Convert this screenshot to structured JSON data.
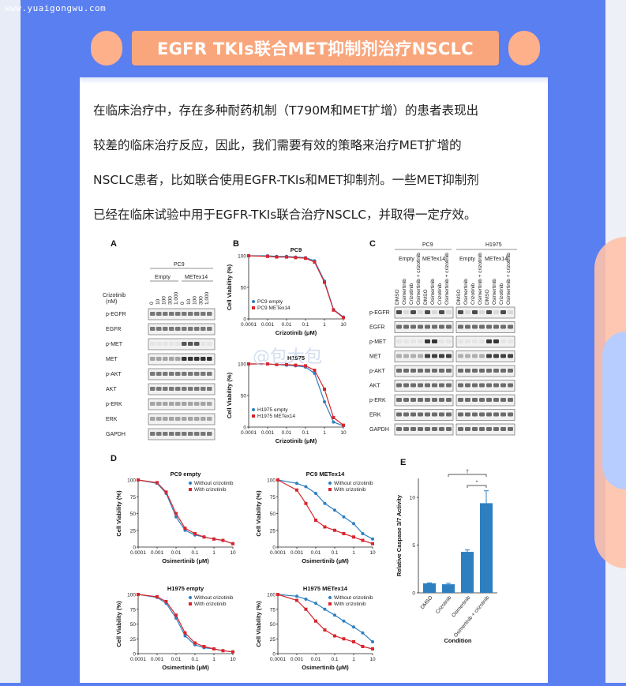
{
  "watermark_site": "www.yuaigongwu.com",
  "banner_title": "EGFR TKIs联合MET抑制剂治疗NSCLC",
  "paragraph_lines": [
    "在临床治疗中，存在多种耐药机制（T790M和MET扩增）的患者表现出",
    "较差的临床治疗反应，因此，我们需要有效的策略来治疗MET扩增的",
    "NSCLC患者，比如联合使用EGFR-TKIs和MET抑制剂。一些MET抑制剂",
    "已经在临床试验中用于EGFR-TKIs联合治疗NSCLC，并取得一定疗效。"
  ],
  "figure_watermark": "@包大包",
  "panel_A": {
    "letter": "A",
    "cell_line": "PC9",
    "groups": [
      "Empty",
      "METex14"
    ],
    "dose_label": "Crizotinib (nM)",
    "doses": [
      "0",
      "10",
      "100",
      "300",
      "1,000"
    ],
    "blots": [
      "p-EGFR",
      "EGFR",
      "p-MET",
      "MET",
      "p-AKT",
      "AKT",
      "p-ERK",
      "ERK",
      "GAPDH"
    ]
  },
  "panel_C": {
    "letter": "C",
    "cell_lines": [
      "PC9",
      "H1975"
    ],
    "groups": [
      "Empty",
      "METex14",
      "Empty",
      "METex14"
    ],
    "treatments": [
      "DMSO",
      "Osimertinib",
      "Crizotinib",
      "Osimertinib + crizotinib"
    ],
    "blots": [
      "p-EGFR",
      "EGFR",
      "p-MET",
      "MET",
      "p-AKT",
      "AKT",
      "p-ERK",
      "ERK",
      "GAPDH"
    ]
  },
  "chart_data": [
    {
      "panel": "B",
      "type": "line",
      "title": "PC9",
      "xlabel": "Crizotinib (μM)",
      "ylabel": "Cell Viability (%)",
      "xscale": "log",
      "ylim": [
        0,
        100
      ],
      "xticks": [
        "0.0001",
        "0.001",
        "0.01",
        "0.1",
        "1",
        "10"
      ],
      "yticks": [
        "0",
        "50",
        "100"
      ],
      "legend_position": "bottom-left",
      "series": [
        {
          "name": "PC9 empty",
          "color": "#2e7fc0",
          "x": [
            0.0001,
            0.001,
            0.003,
            0.01,
            0.03,
            0.1,
            0.3,
            1,
            3,
            10
          ],
          "y": [
            100,
            100,
            99,
            99,
            98,
            97,
            92,
            60,
            15,
            3
          ]
        },
        {
          "name": "PC9 METex14",
          "color": "#d8262e",
          "x": [
            0.0001,
            0.001,
            0.003,
            0.01,
            0.03,
            0.1,
            0.3,
            1,
            3,
            10
          ],
          "y": [
            100,
            99,
            98,
            98,
            97,
            96,
            90,
            58,
            14,
            2
          ]
        }
      ]
    },
    {
      "panel": "B2",
      "type": "line",
      "title": "H1975",
      "xlabel": "Crizotinib (μM)",
      "ylabel": "Cell Viability (%)",
      "xscale": "log",
      "ylim": [
        0,
        100
      ],
      "xticks": [
        "0.0001",
        "0.001",
        "0.01",
        "0.1",
        "1",
        "10"
      ],
      "yticks": [
        "0",
        "50",
        "100"
      ],
      "legend_position": "bottom-left",
      "series": [
        {
          "name": "H1975 empty",
          "color": "#2e7fc0",
          "x": [
            0.0001,
            0.001,
            0.003,
            0.01,
            0.03,
            0.1,
            0.3,
            1,
            3,
            10
          ],
          "y": [
            100,
            100,
            99,
            98,
            97,
            95,
            85,
            40,
            8,
            2
          ]
        },
        {
          "name": "H1975 METex14",
          "color": "#d8262e",
          "x": [
            0.0001,
            0.001,
            0.003,
            0.01,
            0.03,
            0.1,
            0.3,
            1,
            3,
            10
          ],
          "y": [
            100,
            100,
            99,
            99,
            98,
            97,
            90,
            60,
            15,
            3
          ]
        }
      ]
    },
    {
      "panel": "D1",
      "type": "line",
      "title": "PC9 empty",
      "xlabel": "Osimertinib (μM)",
      "ylabel": "Cell Viability (%)",
      "xscale": "log",
      "ylim": [
        0,
        100
      ],
      "xticks": [
        "0.0001",
        "0.001",
        "0.01",
        "0.1",
        "1",
        "10"
      ],
      "yticks": [
        "0",
        "25",
        "50",
        "75",
        "100"
      ],
      "legend_position": "top-right",
      "series": [
        {
          "name": "Without crizotinib",
          "color": "#2e7fc0",
          "x": [
            0.0001,
            0.001,
            0.003,
            0.01,
            0.03,
            0.1,
            0.3,
            1,
            3,
            10
          ],
          "y": [
            100,
            95,
            80,
            45,
            25,
            18,
            15,
            12,
            10,
            5
          ]
        },
        {
          "name": "With crizotinib",
          "color": "#d8262e",
          "x": [
            0.0001,
            0.001,
            0.003,
            0.01,
            0.03,
            0.1,
            0.3,
            1,
            3,
            10
          ],
          "y": [
            100,
            96,
            82,
            50,
            28,
            20,
            15,
            12,
            10,
            5
          ]
        }
      ]
    },
    {
      "panel": "D2",
      "type": "line",
      "title": "PC9 METex14",
      "xlabel": "Osimertinib (μM)",
      "ylabel": "Cell Viability (%)",
      "xscale": "log",
      "ylim": [
        0,
        100
      ],
      "xticks": [
        "0.0001",
        "0.001",
        "0.01",
        "0.1",
        "1",
        "10"
      ],
      "yticks": [
        "0",
        "25",
        "50",
        "75",
        "100"
      ],
      "legend_position": "top-right",
      "series": [
        {
          "name": "Without crizotinib",
          "color": "#2e7fc0",
          "x": [
            0.0001,
            0.001,
            0.003,
            0.01,
            0.03,
            0.1,
            0.3,
            1,
            3,
            10
          ],
          "y": [
            100,
            95,
            90,
            80,
            65,
            55,
            45,
            35,
            20,
            12
          ]
        },
        {
          "name": "With crizotinib",
          "color": "#d8262e",
          "x": [
            0.0001,
            0.001,
            0.003,
            0.01,
            0.03,
            0.1,
            0.3,
            1,
            3,
            10
          ],
          "y": [
            100,
            85,
            65,
            40,
            30,
            25,
            20,
            15,
            10,
            5
          ]
        }
      ]
    },
    {
      "panel": "D3",
      "type": "line",
      "title": "H1975 empty",
      "xlabel": "Osimertinib (μM)",
      "ylabel": "Cell Viability (%)",
      "xscale": "log",
      "ylim": [
        0,
        100
      ],
      "xticks": [
        "0.0001",
        "0.001",
        "0.01",
        "0.1",
        "1",
        "10"
      ],
      "yticks": [
        "0",
        "25",
        "50",
        "75",
        "100"
      ],
      "legend_position": "top-right",
      "series": [
        {
          "name": "Without crizotinib",
          "color": "#2e7fc0",
          "x": [
            0.0001,
            0.001,
            0.003,
            0.01,
            0.03,
            0.1,
            0.3,
            1,
            3,
            10
          ],
          "y": [
            100,
            95,
            85,
            60,
            30,
            15,
            10,
            8,
            5,
            3
          ]
        },
        {
          "name": "With crizotinib",
          "color": "#d8262e",
          "x": [
            0.0001,
            0.001,
            0.003,
            0.01,
            0.03,
            0.1,
            0.3,
            1,
            3,
            10
          ],
          "y": [
            100,
            96,
            88,
            65,
            35,
            18,
            12,
            8,
            5,
            3
          ]
        }
      ]
    },
    {
      "panel": "D4",
      "type": "line",
      "title": "H1975 METex14",
      "xlabel": "Osimertinib (μM)",
      "ylabel": "Cell Viability (%)",
      "xscale": "log",
      "ylim": [
        0,
        100
      ],
      "xticks": [
        "0.0001",
        "0.001",
        "0.01",
        "0.1",
        "1",
        "10"
      ],
      "yticks": [
        "0",
        "25",
        "50",
        "75",
        "100"
      ],
      "legend_position": "top-right",
      "series": [
        {
          "name": "Without crizotinib",
          "color": "#2e7fc0",
          "x": [
            0.0001,
            0.001,
            0.003,
            0.01,
            0.03,
            0.1,
            0.3,
            1,
            3,
            10
          ],
          "y": [
            100,
            97,
            92,
            85,
            75,
            65,
            55,
            45,
            35,
            20
          ]
        },
        {
          "name": "With crizotinib",
          "color": "#d8262e",
          "x": [
            0.0001,
            0.001,
            0.003,
            0.01,
            0.03,
            0.1,
            0.3,
            1,
            3,
            10
          ],
          "y": [
            100,
            90,
            75,
            55,
            40,
            30,
            25,
            20,
            12,
            8
          ]
        }
      ]
    },
    {
      "panel": "E",
      "type": "bar",
      "xlabel": "Condition",
      "ylabel": "Relative Caspase 3/7 Activity",
      "ylim": [
        0,
        12
      ],
      "yticks": [
        "0",
        "5",
        "10"
      ],
      "categories": [
        "DMSO",
        "Crizotinib",
        "Osimertinib",
        "Osimertinib + crizotinib"
      ],
      "values": [
        1.0,
        0.9,
        4.3,
        9.4
      ],
      "errors": [
        0.05,
        0.1,
        0.2,
        1.3
      ],
      "color": "#2e7fc0",
      "annotations": [
        "†",
        "*"
      ]
    }
  ]
}
